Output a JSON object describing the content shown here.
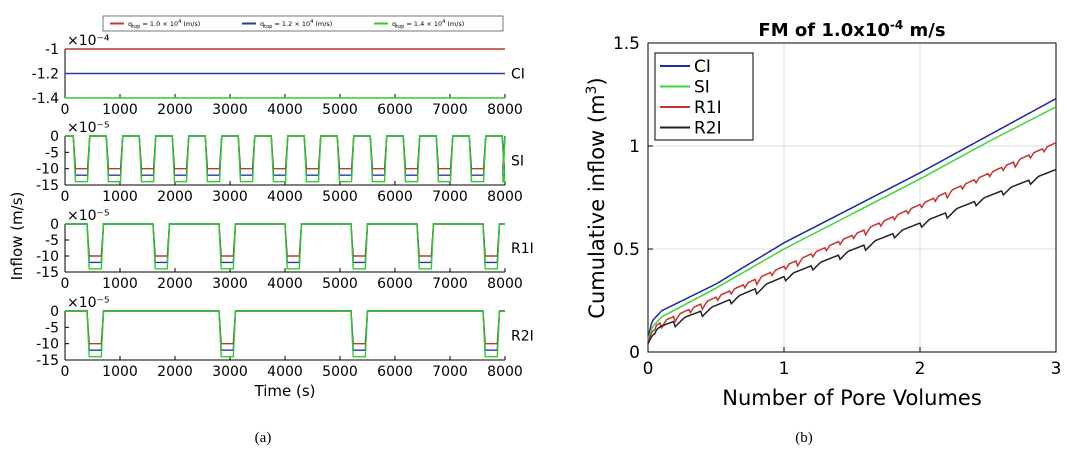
{
  "captions": {
    "a": "(a)",
    "b": "(b)"
  },
  "chart_data": [
    {
      "type": "line",
      "id": "a",
      "ylabel": "Inflow (m/s)",
      "xlabel": "Time (s)",
      "xlim": [
        0,
        8000
      ],
      "xticks": [
        0,
        1000,
        2000,
        3000,
        4000,
        5000,
        6000,
        7000,
        8000
      ],
      "legend": {
        "placement": "top",
        "entries": [
          {
            "label": "q_top = 1.0 × 10^4 (m/s)",
            "q": "1.0",
            "color": "#c0392b"
          },
          {
            "label": "q_top = 1.2 × 10^4 (m/s)",
            "q": "1.2",
            "color": "#2b3aa3"
          },
          {
            "label": "q_top = 1.4 × 10^4 (m/s)",
            "q": "1.4",
            "color": "#2ecc2e"
          }
        ]
      },
      "panels": [
        {
          "name": "CI",
          "exponent": "×10⁻⁴",
          "ylim": [
            -1.4,
            -1
          ],
          "yticks": [
            -1,
            -1.2,
            -1.4
          ],
          "pattern": "constant",
          "levels": [
            -1.0,
            -1.2,
            -1.4
          ]
        },
        {
          "name": "SI",
          "exponent": "×10⁻⁵",
          "ylim": [
            -15,
            0
          ],
          "yticks": [
            0,
            -5,
            -10,
            -15
          ],
          "pattern": "pulses",
          "period": 600,
          "on_duration": 300,
          "first_start": 150,
          "levels": [
            -10,
            -12,
            -14
          ]
        },
        {
          "name": "R1I",
          "exponent": "×10⁻⁵",
          "ylim": [
            -15,
            0
          ],
          "yticks": [
            0,
            -5,
            -10,
            -15
          ],
          "pattern": "pulses",
          "period": 1200,
          "on_duration": 300,
          "first_start": 400,
          "levels": [
            -10,
            -12,
            -14
          ]
        },
        {
          "name": "R2I",
          "exponent": "×10⁻⁵",
          "ylim": [
            -15,
            0
          ],
          "yticks": [
            0,
            -5,
            -10,
            -15
          ],
          "pattern": "pulses",
          "period": 2400,
          "on_duration": 300,
          "first_start": 400,
          "levels": [
            -10,
            -12,
            -14
          ]
        }
      ]
    },
    {
      "type": "line",
      "id": "b",
      "title_main": "FM of 1.0x10",
      "title_sup": "-4",
      "title_tail": " m/s",
      "xlabel": "Number of Pore Volumes",
      "ylabel_main": "Cumulative inflow (m",
      "ylabel_sup": "3",
      "ylabel_tail": ")",
      "xlim": [
        0,
        3
      ],
      "ylim": [
        0,
        1.5
      ],
      "xticks": [
        0,
        1,
        2,
        3
      ],
      "yticks": [
        0,
        0.5,
        1,
        1.5
      ],
      "grid": true,
      "legend_placement": "top-left",
      "series": [
        {
          "name": "CI",
          "color": "#1f2a9e",
          "x": [
            0,
            0.03,
            0.1,
            0.5,
            1,
            1.5,
            2,
            2.5,
            3
          ],
          "y": [
            0.07,
            0.15,
            0.2,
            0.33,
            0.53,
            0.7,
            0.87,
            1.05,
            1.23
          ]
        },
        {
          "name": "SI",
          "color": "#3ad63a",
          "x": [
            0,
            0.03,
            0.1,
            0.5,
            1,
            1.5,
            2,
            2.5,
            3
          ],
          "y": [
            0.06,
            0.12,
            0.17,
            0.31,
            0.5,
            0.67,
            0.84,
            1.02,
            1.19
          ]
        },
        {
          "name": "R1I",
          "color": "#c8322e",
          "x": [
            0,
            0.03,
            0.1,
            0.5,
            1,
            1.5,
            2,
            2.5,
            3
          ],
          "y": [
            0.05,
            0.1,
            0.13,
            0.25,
            0.4,
            0.55,
            0.7,
            0.85,
            1.0
          ]
        },
        {
          "name": "R2I",
          "color": "#222222",
          "x": [
            0,
            0.03,
            0.1,
            0.5,
            1,
            1.5,
            2,
            2.5,
            3
          ],
          "y": [
            0.04,
            0.08,
            0.11,
            0.21,
            0.35,
            0.48,
            0.61,
            0.74,
            0.87
          ]
        }
      ]
    }
  ]
}
